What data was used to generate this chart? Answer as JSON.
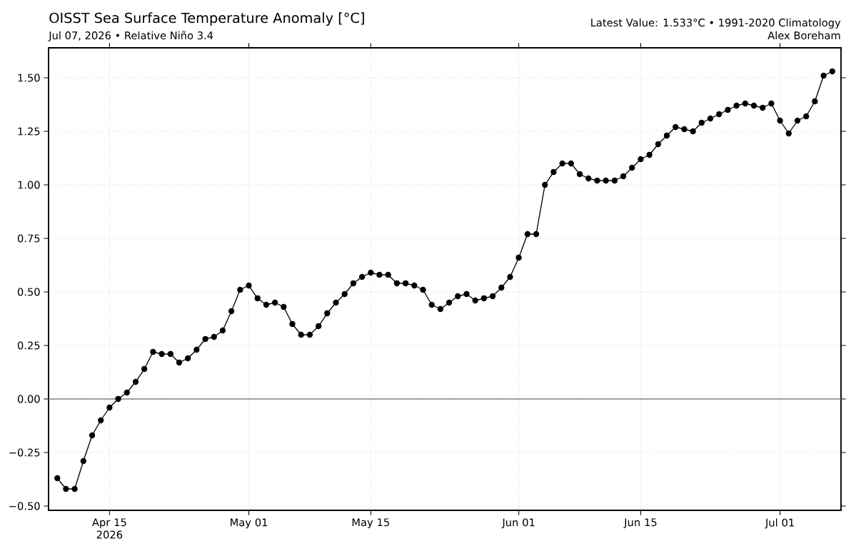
{
  "chart_data": {
    "type": "line",
    "title": "OISST Sea Surface Temperature Anomaly [°C]",
    "subtitle": "Jul 07, 2026 • Relative Niño 3.4",
    "annotations": [
      "Latest Value: 1.533°C • 1991-2020 Climatology",
      "Alex Boreham"
    ],
    "x": [
      "2026-04-09",
      "2026-04-10",
      "2026-04-11",
      "2026-04-12",
      "2026-04-13",
      "2026-04-14",
      "2026-04-15",
      "2026-04-16",
      "2026-04-17",
      "2026-04-18",
      "2026-04-19",
      "2026-04-20",
      "2026-04-21",
      "2026-04-22",
      "2026-04-23",
      "2026-04-24",
      "2026-04-25",
      "2026-04-26",
      "2026-04-27",
      "2026-04-28",
      "2026-04-29",
      "2026-04-30",
      "2026-05-01",
      "2026-05-02",
      "2026-05-03",
      "2026-05-04",
      "2026-05-05",
      "2026-05-06",
      "2026-05-07",
      "2026-05-08",
      "2026-05-09",
      "2026-05-10",
      "2026-05-11",
      "2026-05-12",
      "2026-05-13",
      "2026-05-14",
      "2026-05-15",
      "2026-05-16",
      "2026-05-17",
      "2026-05-18",
      "2026-05-19",
      "2026-05-20",
      "2026-05-21",
      "2026-05-22",
      "2026-05-23",
      "2026-05-24",
      "2026-05-25",
      "2026-05-26",
      "2026-05-27",
      "2026-05-28",
      "2026-05-29",
      "2026-05-30",
      "2026-05-31",
      "2026-06-01",
      "2026-06-02",
      "2026-06-03",
      "2026-06-04",
      "2026-06-05",
      "2026-06-06",
      "2026-06-07",
      "2026-06-08",
      "2026-06-09",
      "2026-06-10",
      "2026-06-11",
      "2026-06-12",
      "2026-06-13",
      "2026-06-14",
      "2026-06-15",
      "2026-06-16",
      "2026-06-17",
      "2026-06-18",
      "2026-06-19",
      "2026-06-20",
      "2026-06-21",
      "2026-06-22",
      "2026-06-23",
      "2026-06-24",
      "2026-06-25",
      "2026-06-26",
      "2026-06-27",
      "2026-06-28",
      "2026-06-29",
      "2026-06-30",
      "2026-07-01",
      "2026-07-02",
      "2026-07-03",
      "2026-07-04",
      "2026-07-05",
      "2026-07-06",
      "2026-07-07"
    ],
    "values": [
      -0.37,
      -0.42,
      -0.42,
      -0.29,
      -0.17,
      -0.1,
      -0.04,
      0.0,
      0.03,
      0.08,
      0.14,
      0.22,
      0.21,
      0.21,
      0.17,
      0.19,
      0.23,
      0.28,
      0.29,
      0.32,
      0.41,
      0.51,
      0.53,
      0.47,
      0.44,
      0.45,
      0.43,
      0.35,
      0.3,
      0.3,
      0.34,
      0.4,
      0.45,
      0.49,
      0.54,
      0.57,
      0.59,
      0.58,
      0.58,
      0.54,
      0.54,
      0.53,
      0.51,
      0.44,
      0.42,
      0.45,
      0.48,
      0.49,
      0.46,
      0.47,
      0.48,
      0.52,
      0.57,
      0.66,
      0.77,
      0.77,
      1.0,
      1.06,
      1.1,
      1.1,
      1.05,
      1.03,
      1.02,
      1.02,
      1.02,
      1.04,
      1.08,
      1.12,
      1.14,
      1.19,
      1.23,
      1.27,
      1.26,
      1.25,
      1.29,
      1.31,
      1.33,
      1.35,
      1.37,
      1.38,
      1.37,
      1.36,
      1.38,
      1.3,
      1.24,
      1.3,
      1.32,
      1.39,
      1.51,
      1.53
    ],
    "color": "#000000",
    "marker": "circle",
    "line_style": "solid",
    "grid": true,
    "xlim": [
      "2026-04-08",
      "2026-07-08"
    ],
    "xticks": [
      {
        "value": "2026-04-15",
        "label": "Apr 15 2026"
      },
      {
        "value": "2026-05-01",
        "label": "May 01"
      },
      {
        "value": "2026-05-15",
        "label": "May 15"
      },
      {
        "value": "2026-06-01",
        "label": "Jun 01"
      },
      {
        "value": "2026-06-15",
        "label": "Jun 15"
      },
      {
        "value": "2026-07-01",
        "label": "Jul 01"
      }
    ],
    "ylim": [
      -0.52,
      1.64
    ],
    "yticks": [
      {
        "value": -0.5,
        "label": "−0.50"
      },
      {
        "value": -0.25,
        "label": "−0.25"
      },
      {
        "value": 0,
        "label": "0.00"
      },
      {
        "value": 0.25,
        "label": "0.25"
      },
      {
        "value": 0.5,
        "label": "0.50"
      },
      {
        "value": 0.75,
        "label": "0.75"
      },
      {
        "value": 1.0,
        "label": "1.00"
      },
      {
        "value": 1.25,
        "label": "1.25"
      },
      {
        "value": 1.5,
        "label": "1.50"
      }
    ],
    "ref_lines": [
      {
        "axis": "y",
        "value": 0,
        "color": "#808080"
      }
    ]
  }
}
